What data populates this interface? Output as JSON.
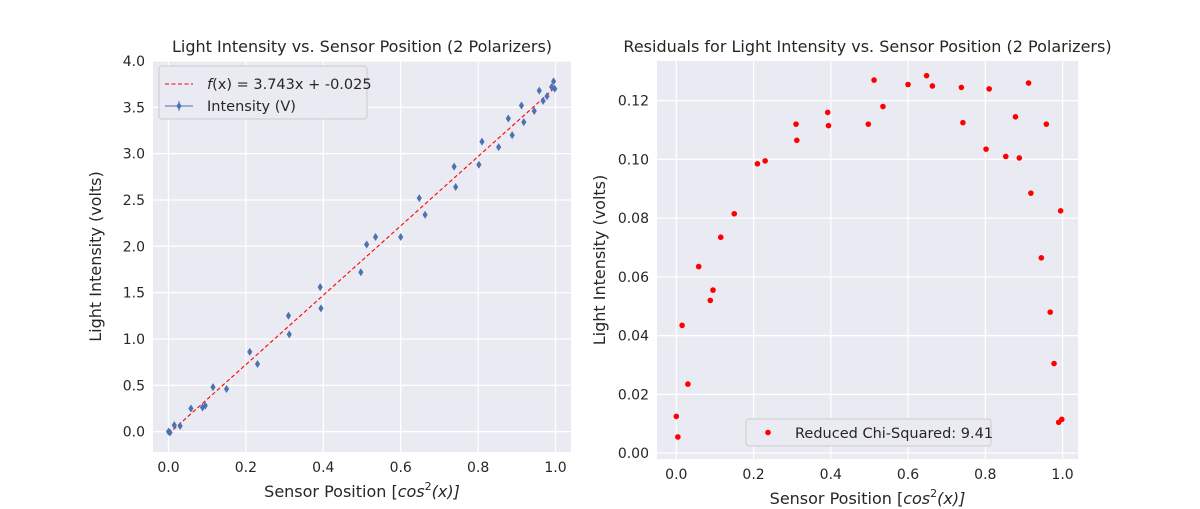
{
  "chart_data": [
    {
      "type": "scatter",
      "title": "Light Intensity vs. Sensor Position (2 Polarizers)",
      "xlabel_prefix": "Sensor Position [",
      "xlabel_math": "cos",
      "xlabel_sup": "2",
      "xlabel_suffix": "(x)]",
      "ylabel": "Light Intensity (volts)",
      "xlim": [
        -0.04,
        1.04
      ],
      "ylim": [
        -0.22,
        4.0
      ],
      "xticks": [
        0.0,
        0.2,
        0.4,
        0.6,
        0.8,
        1.0
      ],
      "xtick_labels": [
        "0.0",
        "0.2",
        "0.4",
        "0.6",
        "0.8",
        "1.0"
      ],
      "yticks": [
        0.0,
        0.5,
        1.0,
        1.5,
        2.0,
        2.5,
        3.0,
        3.5,
        4.0
      ],
      "ytick_labels": [
        "0.0",
        "0.5",
        "1.0",
        "1.5",
        "2.0",
        "2.5",
        "3.0",
        "3.5",
        "4.0"
      ],
      "grid": true,
      "legend_position": "upper-left",
      "fit": {
        "slope": 3.743,
        "intercept": -0.025,
        "color": "#ff0000",
        "label_prefix": "f",
        "label_text": "(x) = 3.743x + -0.025"
      },
      "series": [
        {
          "name": "Intensity (V)",
          "color": "#4c72b0",
          "marker": "diamond",
          "x": [
            0.0,
            0.004,
            0.015,
            0.03,
            0.058,
            0.088,
            0.095,
            0.115,
            0.15,
            0.21,
            0.23,
            0.31,
            0.312,
            0.392,
            0.394,
            0.497,
            0.512,
            0.535,
            0.6,
            0.648,
            0.663,
            0.738,
            0.742,
            0.802,
            0.81,
            0.853,
            0.878,
            0.888,
            0.912,
            0.918,
            0.945,
            0.958,
            0.968,
            0.978,
            0.99,
            0.995,
            0.998
          ],
          "y": [
            0.0,
            -0.01,
            0.07,
            0.06,
            0.25,
            0.26,
            0.28,
            0.48,
            0.46,
            0.86,
            0.73,
            1.25,
            1.05,
            1.56,
            1.33,
            1.72,
            2.02,
            2.1,
            2.1,
            2.52,
            2.34,
            2.86,
            2.64,
            2.88,
            3.13,
            3.07,
            3.38,
            3.2,
            3.52,
            3.34,
            3.46,
            3.68,
            3.57,
            3.62,
            3.72,
            3.78,
            3.7
          ],
          "yerr": 0.03
        }
      ]
    },
    {
      "type": "scatter",
      "title": "Residuals for Light Intensity vs. Sensor Position (2 Polarizers)",
      "xlabel_prefix": "Sensor Position [",
      "xlabel_math": "cos",
      "xlabel_sup": "2",
      "xlabel_suffix": "(x)]",
      "ylabel": "Light Intensity (volts)",
      "xlim": [
        -0.05,
        1.04
      ],
      "ylim": [
        -0.002,
        0.1335
      ],
      "xticks": [
        0.0,
        0.2,
        0.4,
        0.6,
        0.8,
        1.0
      ],
      "xtick_labels": [
        "0.0",
        "0.2",
        "0.4",
        "0.6",
        "0.8",
        "1.0"
      ],
      "yticks": [
        0.0,
        0.02,
        0.04,
        0.06,
        0.08,
        0.1,
        0.12
      ],
      "ytick_labels": [
        "0.00",
        "0.02",
        "0.04",
        "0.06",
        "0.08",
        "0.10",
        "0.12"
      ],
      "grid": true,
      "legend_position": "lower-center",
      "series": [
        {
          "name": "Reduced Chi-Squared: 9.41",
          "color": "#ff0000",
          "marker": "circle",
          "x": [
            0.0,
            0.004,
            0.015,
            0.03,
            0.058,
            0.088,
            0.095,
            0.115,
            0.15,
            0.21,
            0.23,
            0.31,
            0.312,
            0.392,
            0.394,
            0.497,
            0.512,
            0.535,
            0.6,
            0.648,
            0.663,
            0.738,
            0.742,
            0.802,
            0.81,
            0.853,
            0.878,
            0.888,
            0.912,
            0.918,
            0.945,
            0.958,
            0.968,
            0.978,
            0.99,
            0.995,
            0.998
          ],
          "y": [
            0.0125,
            0.0055,
            0.0435,
            0.0235,
            0.0635,
            0.052,
            0.0555,
            0.0735,
            0.0815,
            0.0985,
            0.0995,
            0.112,
            0.1065,
            0.116,
            0.1115,
            0.112,
            0.127,
            0.118,
            0.1255,
            0.1285,
            0.125,
            0.1245,
            0.1125,
            0.1035,
            0.124,
            0.101,
            0.1145,
            0.1005,
            0.126,
            0.0885,
            0.0665,
            0.112,
            0.048,
            0.0305,
            0.0105,
            0.0825,
            0.0115
          ]
        }
      ]
    }
  ]
}
